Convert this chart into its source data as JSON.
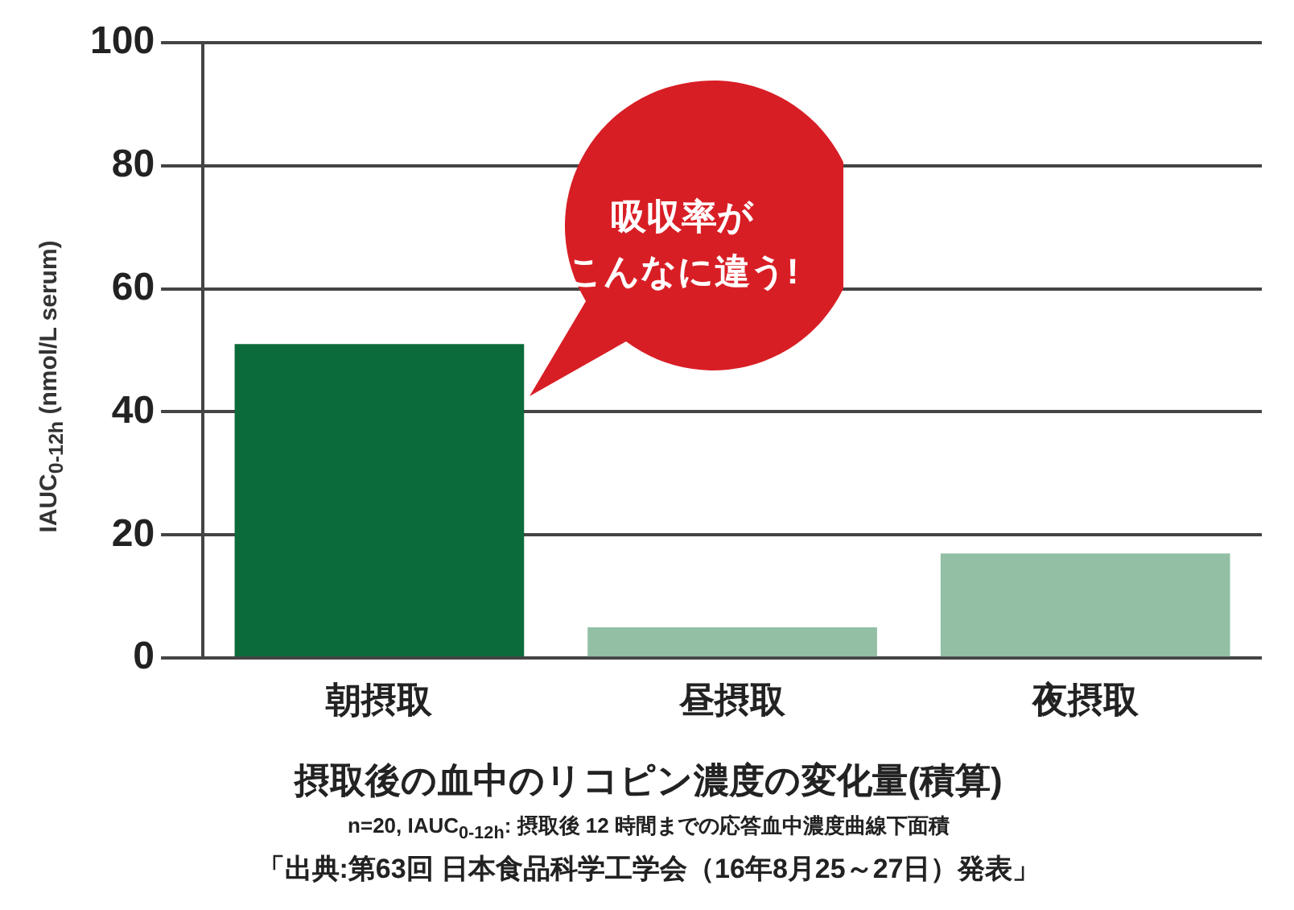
{
  "chart_data": {
    "type": "bar",
    "title": "摂取後の血中のリコピン濃度の変化量(積算)",
    "subtitle": "n=20, IAUC$_{0-12h}$: 摂取後 12 時間までの応答血中濃度曲線下面積",
    "ylabel": "IAUC$_{0-12h}$ (nmol/L serum)",
    "categories": [
      "朝摂取",
      "昼摂取",
      "夜摂取"
    ],
    "values": [
      51,
      5,
      17
    ],
    "colors": [
      "#0b6b3a",
      "#93bfa4",
      "#93bfa4"
    ],
    "ylim": [
      0,
      100
    ],
    "yticks": [
      0,
      20,
      40,
      60,
      80,
      100
    ],
    "grid": "y",
    "legend": false,
    "annotations": [
      "吸収率が",
      "こんなに違う!",
      "「出典:第63回 日本食品科学工学会（16年8月25～27日）発表」"
    ]
  }
}
